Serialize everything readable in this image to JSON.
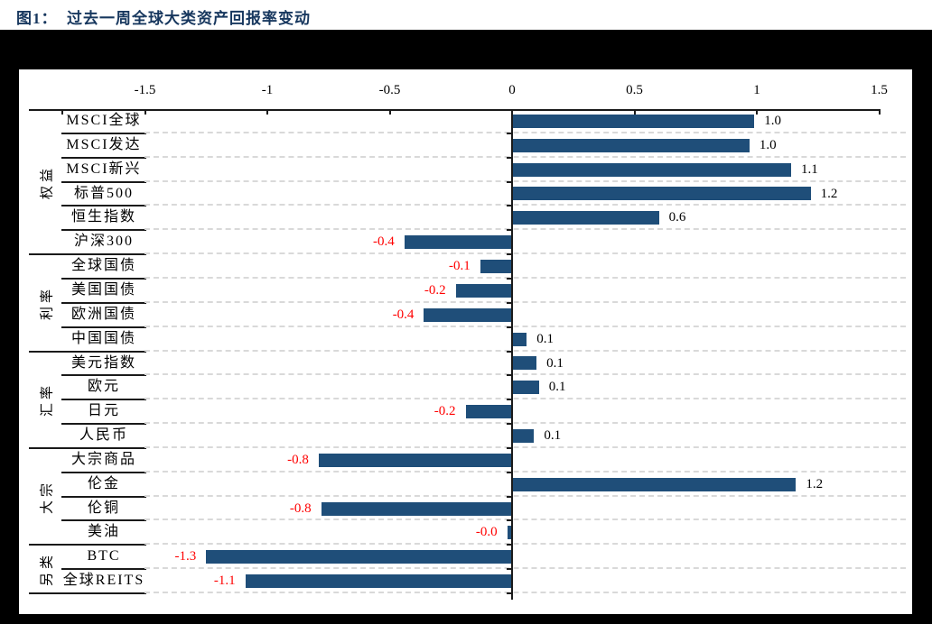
{
  "title": "图1：  过去一周全球大类资产回报率变动",
  "colors": {
    "bar": "#1F4E79",
    "positive_label": "#000000",
    "negative_label": "#FF0000",
    "gridline": "#D9D9D9",
    "axis": "#1A1A1A",
    "frame": "#000000",
    "title": "#17375E"
  },
  "chart_data": {
    "type": "bar",
    "orientation": "horizontal",
    "title": "过去一周全球大类资产回报率变动",
    "unit": "%",
    "xlim": [
      -1.5,
      1.5
    ],
    "axis_ticks": [
      {
        "value": -1.5,
        "label": "-1.5"
      },
      {
        "value": -1,
        "label": "-1"
      },
      {
        "value": -0.5,
        "label": "-0.5"
      },
      {
        "value": 0,
        "label": "0"
      },
      {
        "value": 0.5,
        "label": "0.5"
      },
      {
        "value": 1,
        "label": "1"
      },
      {
        "value": 1.5,
        "label": "1.5"
      }
    ],
    "grid": "dashed-horizontal-per-row",
    "legend": "none",
    "groups": [
      {
        "label": "权益",
        "items": [
          {
            "label": "MSCI全球",
            "value": 0.99,
            "display": "1.0"
          },
          {
            "label": "MSCI发达",
            "value": 0.97,
            "display": "1.0"
          },
          {
            "label": "MSCI新兴",
            "value": 1.14,
            "display": "1.1"
          },
          {
            "label": "标普500",
            "value": 1.22,
            "display": "1.2"
          },
          {
            "label": "恒生指数",
            "value": 0.6,
            "display": "0.6"
          },
          {
            "label": "沪深300",
            "value": -0.44,
            "display": "-0.4"
          }
        ]
      },
      {
        "label": "利率",
        "items": [
          {
            "label": "全球国债",
            "value": -0.13,
            "display": "-0.1"
          },
          {
            "label": "美国国债",
            "value": -0.23,
            "display": "-0.2"
          },
          {
            "label": "欧洲国债",
            "value": -0.36,
            "display": "-0.4"
          },
          {
            "label": "中国国债",
            "value": 0.06,
            "display": "0.1"
          }
        ]
      },
      {
        "label": "汇率",
        "items": [
          {
            "label": "美元指数",
            "value": 0.1,
            "display": "0.1"
          },
          {
            "label": "欧元",
            "value": 0.11,
            "display": "0.1"
          },
          {
            "label": "日元",
            "value": -0.19,
            "display": "-0.2"
          },
          {
            "label": "人民币",
            "value": 0.09,
            "display": "0.1"
          }
        ]
      },
      {
        "label": "大宗",
        "items": [
          {
            "label": "大宗商品",
            "value": -0.79,
            "display": "-0.8"
          },
          {
            "label": "伦金",
            "value": 1.16,
            "display": "1.2"
          },
          {
            "label": "伦铜",
            "value": -0.78,
            "display": "-0.8"
          },
          {
            "label": "美油",
            "value": -0.02,
            "display": "-0.0"
          }
        ]
      },
      {
        "label": "另类",
        "items": [
          {
            "label": "BTC",
            "value": -1.25,
            "display": "-1.3"
          },
          {
            "label": "全球REITS",
            "value": -1.09,
            "display": "-1.1"
          }
        ]
      }
    ]
  }
}
